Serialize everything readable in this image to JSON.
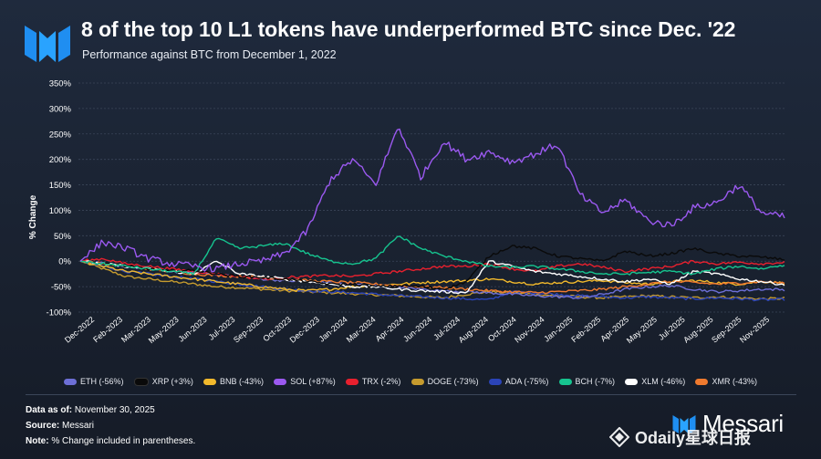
{
  "header": {
    "title": "8 of the top 10 L1 tokens have underperformed BTC since Dec. '22",
    "subtitle": "Performance against BTC from December 1, 2022"
  },
  "footer": {
    "data_as_of_label": "Data as of:",
    "data_as_of_value": "November 30, 2025",
    "source_label": "Source:",
    "source_value": "Messari",
    "note_label": "Note:",
    "note_value": "% Change included in parentheses.",
    "brand": "Messari",
    "watermark": "Odaily星球日报"
  },
  "chart_data": {
    "type": "line",
    "title": "8 of the top 10 L1 tokens have underperformed BTC since Dec. '22",
    "subtitle": "Performance against BTC from December 1, 2022",
    "ylabel": "% Change",
    "xlabel": "",
    "ylim": [
      -100,
      350
    ],
    "yticks": [
      350,
      300,
      250,
      200,
      150,
      100,
      50,
      0,
      -50,
      -100
    ],
    "ytick_labels": [
      "350%",
      "300%",
      "250%",
      "200%",
      "150%",
      "100%",
      "50%",
      "0%",
      "-50%",
      "-100%"
    ],
    "xtick_labels": [
      "Dec-2022",
      "Feb-2023",
      "Mar-2023",
      "May-2023",
      "Jun-2023",
      "Jul-2023",
      "Sep-2023",
      "Oct-2023",
      "Dec-2023",
      "Jan-2024",
      "Mar-2024",
      "Apr-2024",
      "Jun-2024",
      "Jul-2024",
      "Aug-2024",
      "Oct-2024",
      "Nov-2024",
      "Jan-2025",
      "Feb-2025",
      "Apr-2025",
      "May-2025",
      "Jul-2025",
      "Aug-2025",
      "Sep-2025",
      "Nov-2025"
    ],
    "grid": true,
    "legend_position": "bottom",
    "series": [
      {
        "name": "SOL",
        "legend": "SOL (+87%)",
        "color": "#9b59f0",
        "values": [
          0,
          38,
          25,
          5,
          -5,
          -10,
          -15,
          -5,
          0,
          15,
          60,
          160,
          200,
          150,
          265,
          165,
          235,
          200,
          215,
          195,
          210,
          230,
          130,
          95,
          120,
          80,
          70,
          105,
          115,
          150,
          95,
          87
        ]
      },
      {
        "name": "BCH",
        "legend": "BCH (-7%)",
        "color": "#16c48f",
        "values": [
          0,
          -5,
          -10,
          -15,
          -20,
          -25,
          45,
          25,
          30,
          35,
          15,
          0,
          -5,
          5,
          50,
          25,
          10,
          0,
          -10,
          -12,
          -10,
          -15,
          -20,
          -25,
          -25,
          -22,
          -20,
          -25,
          -15,
          -10,
          -15,
          -7
        ]
      },
      {
        "name": "XRP",
        "legend": "XRP (+3%)",
        "color": "#0a0a0a",
        "values": [
          0,
          -5,
          -10,
          -15,
          -20,
          -18,
          -25,
          -30,
          -32,
          -35,
          -40,
          -45,
          -45,
          -50,
          -48,
          -50,
          -55,
          -40,
          10,
          30,
          25,
          10,
          5,
          0,
          20,
          10,
          15,
          25,
          15,
          10,
          8,
          3
        ]
      },
      {
        "name": "TRX",
        "legend": "TRX (-2%)",
        "color": "#e8202e",
        "values": [
          0,
          5,
          -5,
          -10,
          -15,
          -20,
          -25,
          -30,
          -35,
          -32,
          -30,
          -28,
          -30,
          -25,
          -20,
          -15,
          -10,
          -10,
          -5,
          -15,
          -20,
          -10,
          -5,
          -12,
          -20,
          -15,
          -10,
          0,
          -5,
          -2,
          -5,
          -2
        ]
      },
      {
        "name": "XLM",
        "legend": "XLM (-46%)",
        "color": "#ffffff",
        "values": [
          0,
          -5,
          -10,
          -15,
          -20,
          -25,
          0,
          -25,
          -30,
          -35,
          -40,
          -45,
          -50,
          -50,
          -55,
          -58,
          -60,
          -62,
          0,
          -10,
          -20,
          -25,
          -30,
          -35,
          -40,
          -35,
          -45,
          -20,
          -25,
          -35,
          -40,
          -46
        ]
      },
      {
        "name": "XMR",
        "legend": "XMR (-43%)",
        "color": "#f07a2e",
        "values": [
          0,
          -5,
          -10,
          -15,
          -20,
          -25,
          -28,
          -30,
          -32,
          -35,
          -38,
          -40,
          -42,
          -45,
          -48,
          -50,
          -52,
          -55,
          -58,
          -60,
          -62,
          -60,
          -58,
          -55,
          -50,
          -45,
          -40,
          -42,
          -45,
          -43,
          -40,
          -43
        ]
      },
      {
        "name": "ETH",
        "legend": "ETH (-56%)",
        "color": "#6d6fd6",
        "values": [
          0,
          -5,
          -10,
          -15,
          -20,
          -22,
          -25,
          -30,
          -35,
          -38,
          -40,
          -42,
          -45,
          -48,
          -50,
          -55,
          -58,
          -60,
          -62,
          -65,
          -68,
          -70,
          -72,
          -65,
          -55,
          -50,
          -48,
          -55,
          -60,
          -58,
          -55,
          -56
        ]
      },
      {
        "name": "BNB",
        "legend": "BNB (-43%)",
        "color": "#f2b92c",
        "values": [
          0,
          -10,
          -20,
          -25,
          -30,
          -35,
          -40,
          -45,
          -50,
          -55,
          -58,
          -55,
          -50,
          -48,
          -45,
          -42,
          -40,
          -38,
          -35,
          -40,
          -45,
          -42,
          -40,
          -38,
          -42,
          -45,
          -40,
          -38,
          -42,
          -45,
          -40,
          -43
        ]
      },
      {
        "name": "DOGE",
        "legend": "DOGE (-73%)",
        "color": "#c69b2e",
        "values": [
          0,
          -15,
          -30,
          -35,
          -40,
          -45,
          -50,
          -52,
          -55,
          -58,
          -60,
          -62,
          -64,
          -66,
          -68,
          -70,
          -72,
          -65,
          -60,
          -62,
          -65,
          -68,
          -70,
          -72,
          -70,
          -68,
          -70,
          -72,
          -70,
          -72,
          -74,
          -73
        ]
      },
      {
        "name": "ADA",
        "legend": "ADA (-75%)",
        "color": "#2b44b8",
        "values": [
          0,
          -10,
          -20,
          -25,
          -30,
          -35,
          -40,
          -45,
          -50,
          -55,
          -58,
          -60,
          -62,
          -65,
          -68,
          -70,
          -72,
          -74,
          -76,
          -60,
          -62,
          -65,
          -68,
          -70,
          -72,
          -70,
          -72,
          -74,
          -72,
          -74,
          -76,
          -75
        ]
      }
    ]
  },
  "legend_order": [
    "ETH",
    "XRP",
    "BNB",
    "SOL",
    "TRX",
    "DOGE",
    "ADA",
    "BCH",
    "XLM",
    "XMR"
  ]
}
